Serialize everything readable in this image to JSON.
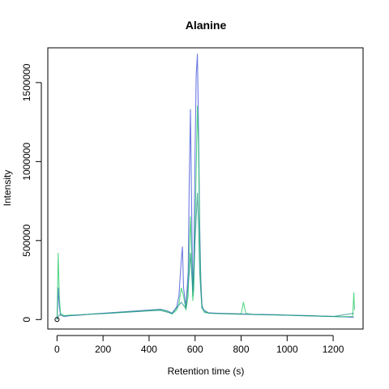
{
  "chart_data": {
    "type": "line",
    "title": "Alanine",
    "xlabel": "Retention time (s)",
    "ylabel": "Intensity",
    "xlim": [
      -40,
      1330
    ],
    "ylim": [
      -60000,
      1720000
    ],
    "xticks": [
      0,
      200,
      400,
      600,
      800,
      1000,
      1200
    ],
    "xtick_labels": [
      "0",
      "200",
      "400",
      "600",
      "800",
      "1000",
      "1200"
    ],
    "yticks": [
      0,
      500000,
      1000000,
      1500000
    ],
    "ytick_labels": [
      "0",
      "500000",
      "1000000",
      "1500000"
    ],
    "grid": false,
    "legend": "none",
    "colors": {
      "blue": "#3b4fd8",
      "green": "#1fc860",
      "teal": "#1f8f8a",
      "marker": "#000000"
    },
    "series": [
      {
        "color": "blue",
        "x": [
          0,
          5,
          10,
          15,
          30,
          60,
          100,
          150,
          200,
          250,
          300,
          350,
          400,
          450,
          480,
          500,
          520,
          530,
          540,
          545,
          550,
          560,
          570,
          575,
          580,
          585,
          590,
          595,
          600,
          605,
          610,
          615,
          620,
          625,
          630,
          640,
          660,
          700,
          750,
          800,
          810,
          820,
          850,
          900,
          950,
          1000,
          1050,
          1100,
          1150,
          1200,
          1230,
          1290
        ],
        "y": [
          0,
          200000,
          80000,
          30000,
          20000,
          25000,
          28000,
          35000,
          40000,
          45000,
          50000,
          55000,
          60000,
          65000,
          55000,
          40000,
          80000,
          150000,
          380000,
          460000,
          200000,
          80000,
          300000,
          900000,
          1330000,
          700000,
          150000,
          400000,
          1050000,
          1550000,
          1680000,
          1200000,
          600000,
          250000,
          90000,
          50000,
          42000,
          40000,
          38000,
          36000,
          35000,
          34000,
          33000,
          32000,
          31000,
          28000,
          26000,
          25000,
          22000,
          20000,
          18000,
          15000
        ]
      },
      {
        "color": "green",
        "x": [
          0,
          5,
          10,
          15,
          30,
          60,
          100,
          150,
          200,
          250,
          300,
          350,
          400,
          450,
          480,
          500,
          520,
          530,
          540,
          550,
          560,
          570,
          575,
          580,
          585,
          590,
          595,
          600,
          605,
          610,
          615,
          620,
          625,
          630,
          640,
          660,
          700,
          750,
          800,
          810,
          820,
          850,
          900,
          950,
          1000,
          1050,
          1100,
          1150,
          1200,
          1230,
          1285,
          1290,
          1293
        ],
        "y": [
          0,
          420000,
          150000,
          40000,
          25000,
          28000,
          30000,
          35000,
          38000,
          42000,
          48000,
          52000,
          58000,
          62000,
          52000,
          35000,
          60000,
          100000,
          200000,
          150000,
          60000,
          150000,
          450000,
          650000,
          400000,
          120000,
          200000,
          600000,
          950000,
          1350000,
          1100000,
          500000,
          200000,
          80000,
          45000,
          40000,
          38000,
          36000,
          34000,
          110000,
          40000,
          32000,
          30000,
          29000,
          27000,
          25000,
          23000,
          21000,
          19000,
          17000,
          20000,
          170000,
          60000
        ]
      },
      {
        "color": "teal",
        "x": [
          0,
          10,
          30,
          100,
          200,
          300,
          400,
          450,
          500,
          540,
          560,
          575,
          580,
          590,
          600,
          610,
          615,
          620,
          630,
          660,
          800,
          1000,
          1200,
          1290
        ],
        "y": [
          0,
          30000,
          22000,
          30000,
          38000,
          46000,
          55000,
          58000,
          38000,
          110000,
          70000,
          300000,
          420000,
          180000,
          500000,
          800000,
          600000,
          300000,
          70000,
          40000,
          34000,
          27000,
          19000,
          40000
        ]
      }
    ],
    "markers": [
      {
        "x": 0,
        "y": 0,
        "shape": "open-circle"
      }
    ]
  }
}
